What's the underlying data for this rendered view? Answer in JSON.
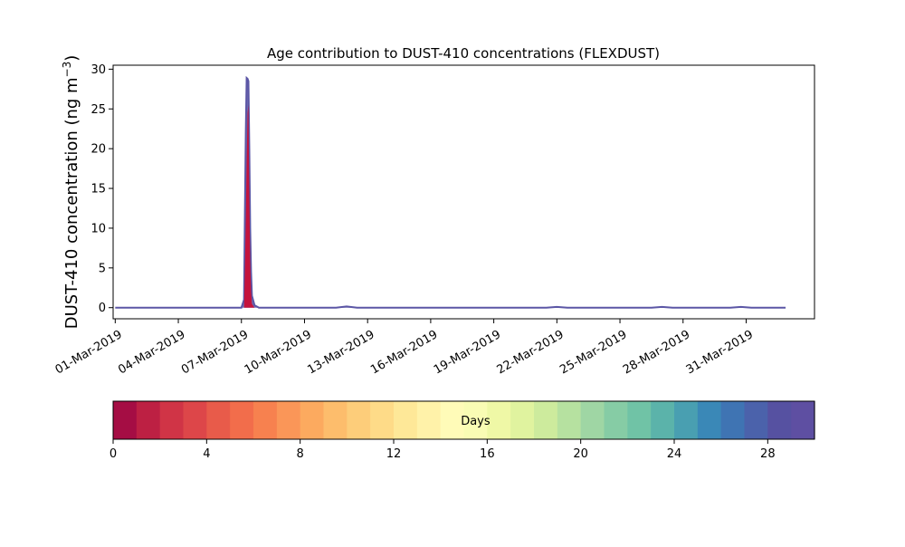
{
  "chart_data": [
    {
      "type": "area",
      "title": "Age contribution to DUST-410 concentrations (FLEXDUST)",
      "ylabel": "DUST-410 concentration (ng m",
      "ylabel_sup": "−3",
      "ylabel_close": ")",
      "xlabel": "",
      "ylim": [
        -1.4,
        30.5
      ],
      "xlim": [
        "2019-02-28T21:36",
        "2019-04-03T06:00"
      ],
      "yticks": [
        0,
        5,
        10,
        15,
        20,
        25,
        30
      ],
      "xticks": [
        {
          "date": "2019-03-01",
          "label": "01-Mar-2019"
        },
        {
          "date": "2019-03-04",
          "label": "04-Mar-2019"
        },
        {
          "date": "2019-03-07",
          "label": "07-Mar-2019"
        },
        {
          "date": "2019-03-10",
          "label": "10-Mar-2019"
        },
        {
          "date": "2019-03-13",
          "label": "13-Mar-2019"
        },
        {
          "date": "2019-03-16",
          "label": "16-Mar-2019"
        },
        {
          "date": "2019-03-19",
          "label": "19-Mar-2019"
        },
        {
          "date": "2019-03-22",
          "label": "22-Mar-2019"
        },
        {
          "date": "2019-03-25",
          "label": "25-Mar-2019"
        },
        {
          "date": "2019-03-28",
          "label": "28-Mar-2019"
        },
        {
          "date": "2019-03-31",
          "label": "31-Mar-2019"
        }
      ],
      "series": [
        {
          "role": "total",
          "color": "#5b56a5",
          "points": [
            [
              "2019-03-01T00:00",
              0
            ],
            [
              "2019-03-07T00:00",
              0
            ],
            [
              "2019-03-07T03:00",
              1.0
            ],
            [
              "2019-03-07T04:00",
              12
            ],
            [
              "2019-03-07T05:00",
              22
            ],
            [
              "2019-03-07T06:00",
              28.9
            ],
            [
              "2019-03-07T07:00",
              28.8
            ],
            [
              "2019-03-07T08:00",
              28.5
            ],
            [
              "2019-03-07T09:00",
              20
            ],
            [
              "2019-03-07T10:00",
              10
            ],
            [
              "2019-03-07T11:00",
              4.5
            ],
            [
              "2019-03-07T12:00",
              1.5
            ],
            [
              "2019-03-07T15:00",
              0.3
            ],
            [
              "2019-03-07T20:00",
              0
            ],
            [
              "2019-03-11T12:00",
              0
            ],
            [
              "2019-03-12T00:00",
              0.15
            ],
            [
              "2019-03-12T12:00",
              0
            ],
            [
              "2019-03-21T12:00",
              0
            ],
            [
              "2019-03-22T00:00",
              0.1
            ],
            [
              "2019-03-22T12:00",
              0
            ],
            [
              "2019-03-26T12:00",
              0
            ],
            [
              "2019-03-27T00:00",
              0.1
            ],
            [
              "2019-03-27T12:00",
              0
            ],
            [
              "2019-03-30T06:00",
              0
            ],
            [
              "2019-03-30T18:00",
              0.1
            ],
            [
              "2019-03-31T06:00",
              0
            ],
            [
              "2019-04-01T21:00",
              0
            ]
          ]
        },
        {
          "role": "age-0-1-days",
          "color": "#c4133d",
          "points": [
            [
              "2019-03-07T03:00",
              0
            ],
            [
              "2019-03-07T04:00",
              5
            ],
            [
              "2019-03-07T05:00",
              11
            ],
            [
              "2019-03-07T06:00",
              18.5
            ],
            [
              "2019-03-07T07:00",
              24.5
            ],
            [
              "2019-03-07T08:00",
              25.5
            ],
            [
              "2019-03-07T09:00",
              14
            ],
            [
              "2019-03-07T10:00",
              6
            ],
            [
              "2019-03-07T11:00",
              2
            ],
            [
              "2019-03-07T12:00",
              0.5
            ],
            [
              "2019-03-07T15:00",
              0
            ]
          ]
        }
      ],
      "colorbar": {
        "label": "Days",
        "min": 0,
        "max": 30,
        "ticks": [
          0,
          4,
          8,
          12,
          16,
          20,
          24,
          28
        ],
        "colors": [
          "#a50d44",
          "#bd2043",
          "#d03446",
          "#dd4649",
          "#e85b4a",
          "#f26d4b",
          "#f7814f",
          "#fa9658",
          "#fcaa5f",
          "#fdbd6c",
          "#fdcd7a",
          "#fedb88",
          "#fee898",
          "#fff2a9",
          "#fffbb8",
          "#f9fcb4",
          "#eff8a6",
          "#e0f39f",
          "#cdeb9d",
          "#b6e1a0",
          "#9fd6a4",
          "#86cca5",
          "#70c3a6",
          "#5bb3aa",
          "#499fb1",
          "#3a88b7",
          "#3f74b3",
          "#4b62ab",
          "#5651a1",
          "#5e4fa2"
        ]
      }
    }
  ]
}
